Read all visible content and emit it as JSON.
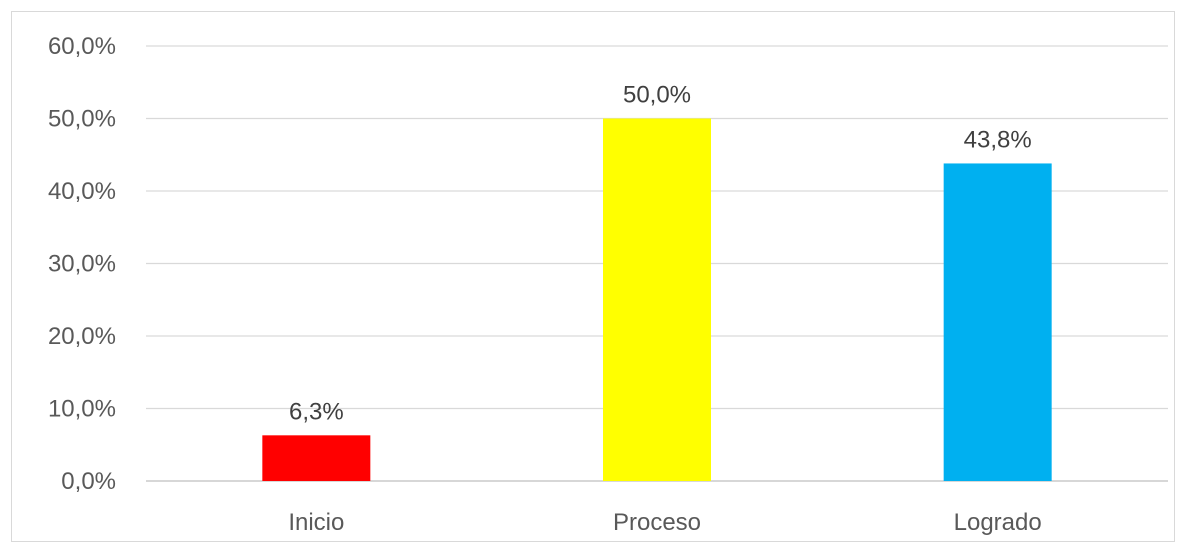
{
  "chart_data": {
    "type": "bar",
    "title": "",
    "xlabel": "",
    "ylabel": "",
    "categories": [
      "Inicio",
      "Proceso",
      "Logrado"
    ],
    "values": [
      6.3,
      50.0,
      43.8
    ],
    "value_labels": [
      "6,3%",
      "50,0%",
      "43,8%"
    ],
    "colors": [
      "#ff0000",
      "#ffff00",
      "#00b0f0"
    ],
    "ylim": [
      0,
      60
    ],
    "yticks": [
      0,
      10,
      20,
      30,
      40,
      50,
      60
    ],
    "ytick_labels": [
      "0,0%",
      "10,0%",
      "20,0%",
      "30,0%",
      "40,0%",
      "50,0%",
      "60,0%"
    ],
    "grid": true,
    "legend": "none"
  }
}
